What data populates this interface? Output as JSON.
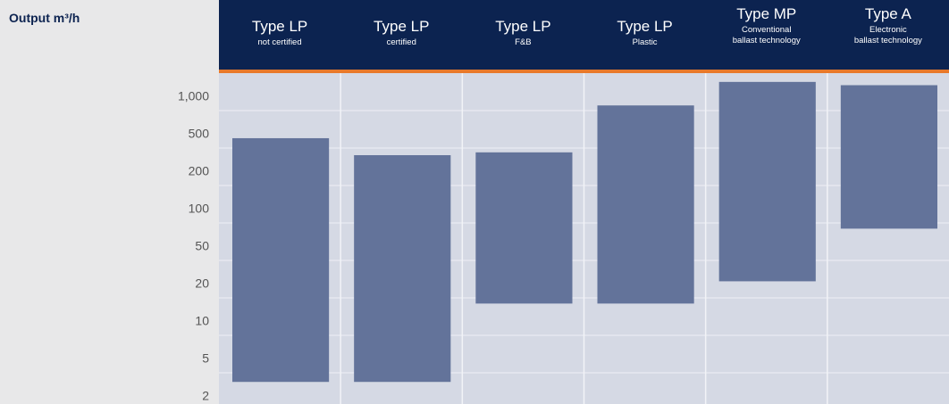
{
  "chart_data": {
    "type": "range-bar",
    "y_axis_label": "Output m³/h",
    "categories": [
      {
        "label": "Type LP",
        "sublabel": [
          "not certified"
        ]
      },
      {
        "label": "Type LP",
        "sublabel": [
          "certified"
        ]
      },
      {
        "label": "Type LP",
        "sublabel": [
          "F&B"
        ]
      },
      {
        "label": "Type LP",
        "sublabel": [
          "Plastic"
        ]
      },
      {
        "label": "Type MP",
        "sublabel": [
          "Conventional",
          "ballast technology"
        ]
      },
      {
        "label": "Type A",
        "sublabel": [
          "Electronic",
          "ballast technology"
        ]
      }
    ],
    "low": [
      4,
      4,
      18,
      18,
      30,
      90
    ],
    "high": [
      600,
      420,
      450,
      1100,
      1700,
      1600
    ],
    "color": "#63739a",
    "ylim": [
      2,
      2000
    ],
    "yticks": [
      2,
      5,
      10,
      20,
      50,
      100,
      200,
      500,
      {
        "value": 1000,
        "label": "1,000"
      }
    ],
    "grid": true
  }
}
